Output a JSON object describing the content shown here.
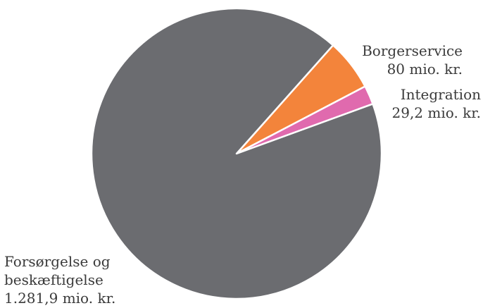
{
  "chart_data": {
    "type": "pie",
    "title": "",
    "slices": [
      {
        "name": "Borgerservice",
        "value": 80,
        "value_label": "80 mio. kr.",
        "color": "#F3843B"
      },
      {
        "name": "Integration",
        "value": 29.2,
        "value_label": "29,2 mio. kr.",
        "color": "#E06AAE"
      },
      {
        "name_lines": [
          "Forsørgelse og",
          "beskæftigelse"
        ],
        "value": 1281.9,
        "value_label": "1.281,9 mio. kr.",
        "color": "#6B6C70"
      }
    ],
    "label_color": "#3a3a3a",
    "legend": "none"
  }
}
